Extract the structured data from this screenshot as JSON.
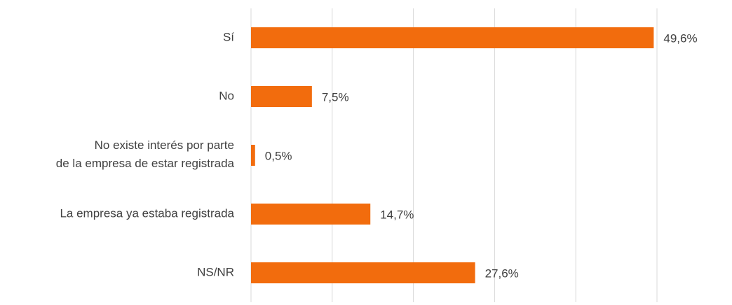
{
  "chart_data": {
    "type": "bar",
    "orientation": "horizontal",
    "categories": [
      "Sí",
      "No",
      [
        "No existe interés por parte",
        "de la empresa de estar registrada"
      ],
      "La empresa ya estaba registrada",
      "NS/NR"
    ],
    "values": [
      49.6,
      7.5,
      0.5,
      14.7,
      27.6
    ],
    "value_labels": [
      "49,6%",
      "7,5%",
      "0,5%",
      "14,7%",
      "27,6%"
    ],
    "color": "#f26c0d",
    "xlim": [
      0,
      50
    ],
    "xticks": [
      0,
      10,
      20,
      30,
      40,
      50
    ],
    "grid": true
  }
}
